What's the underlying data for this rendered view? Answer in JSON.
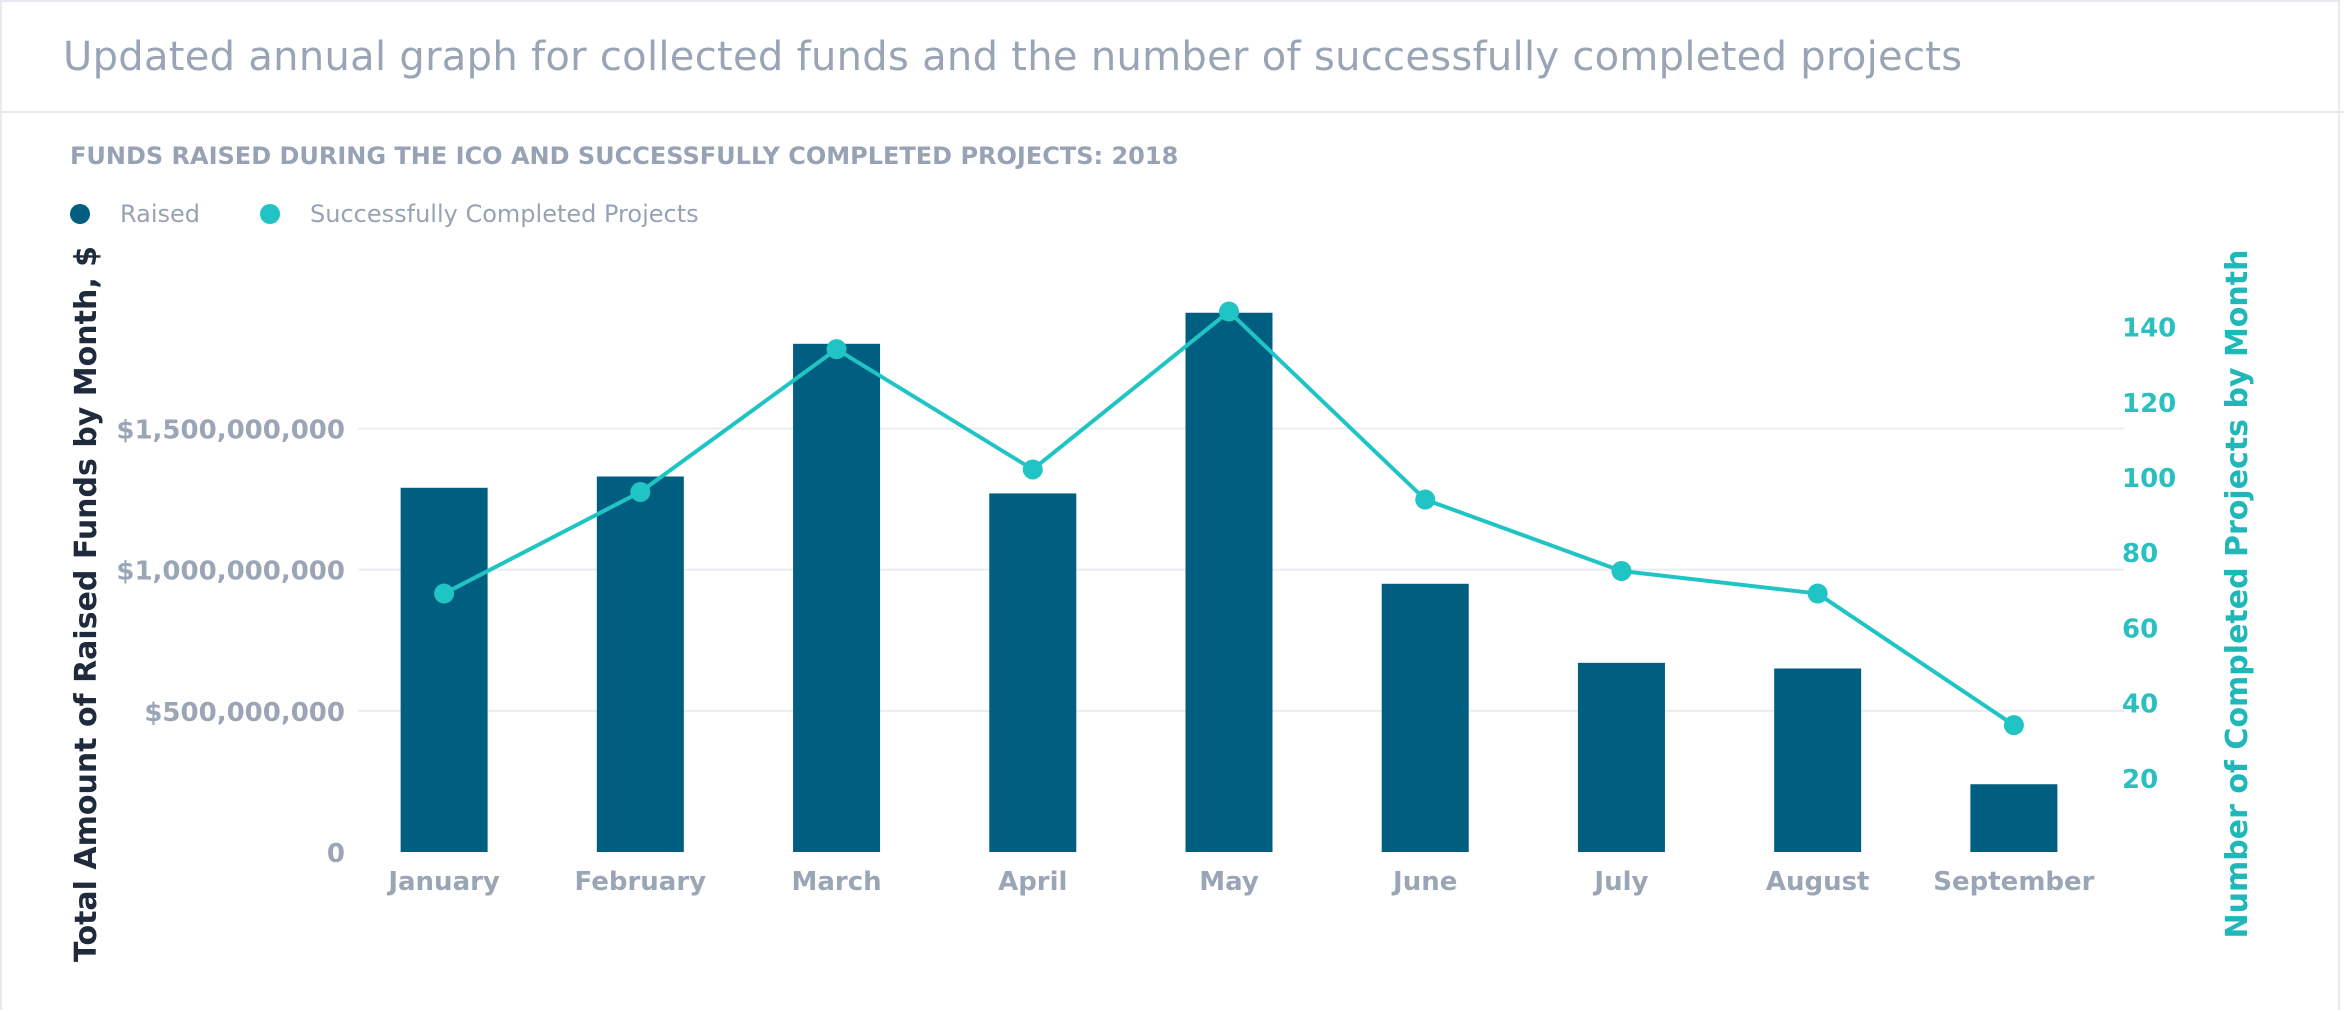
{
  "header": {
    "title": "Updated annual graph for collected funds and the number of successfully completed projects"
  },
  "chart_data": {
    "type": "bar",
    "title": "FUNDS RAISED DURING THE ICO AND SUCCESSFULLY COMPLETED PROJECTS: 2018",
    "categories": [
      "January",
      "February",
      "March",
      "April",
      "May",
      "June",
      "July",
      "August",
      "September"
    ],
    "series": [
      {
        "name": "Raised",
        "type": "bar",
        "axis": "left",
        "color": "#005f80",
        "values": [
          1290000000,
          1330000000,
          1800000000,
          1270000000,
          1910000000,
          950000000,
          670000000,
          650000000,
          240000000
        ]
      },
      {
        "name": "Successfully Completed Projects",
        "type": "line",
        "axis": "right",
        "color": "#21c4c4",
        "values": [
          69,
          96,
          134,
          102,
          144,
          94,
          75,
          69,
          34
        ]
      }
    ],
    "y_left": {
      "label": "Total Amount of Raised Funds by Month, $",
      "range": [
        0,
        2000000000
      ],
      "ticks": [
        0,
        500000000,
        1000000000,
        1500000000
      ],
      "tick_labels": [
        "0",
        "$500,000,000",
        "$1,000,000,000",
        "$1,500,000,000"
      ]
    },
    "y_right": {
      "label": "Number of Completed Projects by Month",
      "range": [
        0,
        150
      ],
      "ticks": [
        20,
        40,
        60,
        80,
        100,
        120,
        140
      ],
      "tick_labels": [
        "20",
        "40",
        "60",
        "80",
        "100",
        "120",
        "140"
      ]
    },
    "grid": true,
    "legend_position": "top-left"
  }
}
